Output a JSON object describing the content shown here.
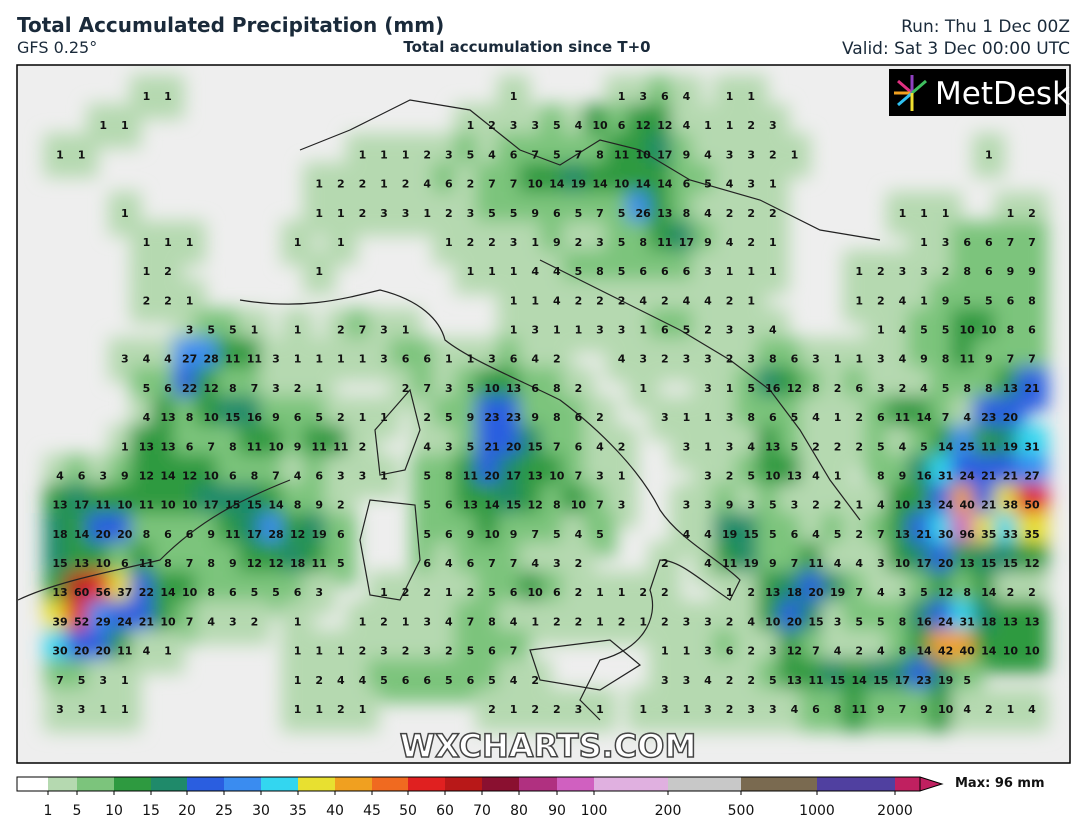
{
  "header": {
    "title": "Total Accumulated Precipitation (mm)",
    "model": "GFS 0.25°",
    "subtitle": "Total accumulation since T+0",
    "run": "Run: Thu 1 Dec 00Z",
    "valid": "Valid: Sat 3 Dec 00:00 UTC"
  },
  "logo": "MetDesk",
  "watermark": "WXCHARTS.COM",
  "map": {
    "grid": [
      [
        null,
        null,
        null,
        null,
        1,
        1,
        null,
        null,
        null,
        null,
        null,
        null,
        null,
        null,
        null,
        null,
        null,
        null,
        null,
        null,
        null,
        1,
        null,
        null,
        null,
        null,
        1,
        3,
        6,
        4,
        null,
        1,
        1,
        null,
        null,
        null,
        null,
        null,
        null,
        null,
        null,
        null,
        null,
        null,
        null,
        null
      ],
      [
        null,
        null,
        1,
        1,
        null,
        null,
        null,
        null,
        null,
        null,
        null,
        null,
        null,
        null,
        null,
        null,
        null,
        null,
        null,
        1,
        2,
        3,
        3,
        5,
        4,
        10,
        6,
        12,
        12,
        4,
        1,
        1,
        2,
        3,
        null,
        null,
        null,
        null,
        null,
        null,
        null,
        null,
        null,
        null,
        null,
        null
      ],
      [
        1,
        1,
        null,
        null,
        null,
        null,
        null,
        null,
        null,
        null,
        null,
        null,
        null,
        null,
        1,
        1,
        1,
        2,
        3,
        5,
        4,
        6,
        7,
        5,
        7,
        8,
        11,
        10,
        17,
        9,
        4,
        3,
        3,
        2,
        1,
        null,
        null,
        null,
        null,
        null,
        null,
        null,
        null,
        1,
        null,
        null
      ],
      [
        null,
        null,
        null,
        null,
        null,
        null,
        null,
        null,
        null,
        null,
        null,
        null,
        1,
        2,
        2,
        1,
        2,
        4,
        6,
        2,
        7,
        7,
        10,
        14,
        19,
        14,
        10,
        14,
        14,
        6,
        5,
        4,
        3,
        1,
        null,
        null,
        null,
        null,
        null,
        null,
        null,
        null,
        null,
        null,
        null,
        null
      ],
      [
        null,
        null,
        null,
        1,
        null,
        null,
        null,
        null,
        null,
        null,
        null,
        null,
        1,
        1,
        2,
        3,
        3,
        1,
        2,
        3,
        5,
        5,
        9,
        6,
        5,
        7,
        5,
        26,
        13,
        8,
        4,
        2,
        2,
        2,
        null,
        null,
        null,
        null,
        null,
        1,
        1,
        1,
        null,
        null,
        1,
        2
      ],
      [
        null,
        null,
        null,
        null,
        1,
        1,
        1,
        null,
        null,
        null,
        null,
        1,
        null,
        1,
        null,
        null,
        null,
        null,
        1,
        2,
        2,
        3,
        1,
        9,
        2,
        3,
        5,
        8,
        11,
        17,
        9,
        4,
        2,
        1,
        null,
        null,
        null,
        null,
        null,
        null,
        1,
        3,
        6,
        6,
        7,
        7
      ],
      [
        null,
        null,
        null,
        null,
        1,
        2,
        null,
        null,
        null,
        null,
        null,
        null,
        1,
        null,
        null,
        null,
        null,
        null,
        null,
        1,
        1,
        1,
        4,
        4,
        5,
        8,
        5,
        6,
        6,
        6,
        3,
        1,
        1,
        1,
        null,
        null,
        null,
        1,
        2,
        3,
        3,
        2,
        8,
        6,
        9,
        9
      ],
      [
        null,
        null,
        null,
        null,
        2,
        2,
        1,
        null,
        null,
        null,
        null,
        null,
        null,
        null,
        null,
        null,
        null,
        null,
        null,
        null,
        null,
        1,
        1,
        4,
        2,
        2,
        2,
        4,
        2,
        4,
        4,
        2,
        1,
        null,
        null,
        null,
        null,
        1,
        2,
        4,
        1,
        9,
        5,
        5,
        6,
        8
      ],
      [
        null,
        null,
        null,
        null,
        null,
        null,
        3,
        5,
        5,
        1,
        null,
        1,
        null,
        2,
        7,
        3,
        1,
        null,
        null,
        null,
        null,
        1,
        3,
        1,
        1,
        3,
        3,
        1,
        6,
        5,
        2,
        3,
        3,
        4,
        null,
        null,
        null,
        null,
        1,
        4,
        5,
        5,
        10,
        10,
        8,
        6
      ],
      [
        null,
        null,
        null,
        3,
        4,
        4,
        27,
        28,
        11,
        11,
        3,
        1,
        1,
        1,
        1,
        3,
        6,
        6,
        1,
        1,
        3,
        6,
        4,
        2,
        null,
        null,
        4,
        3,
        2,
        3,
        3,
        2,
        3,
        8,
        6,
        3,
        1,
        1,
        3,
        4,
        9,
        8,
        11,
        9,
        7,
        7
      ],
      [
        null,
        null,
        null,
        null,
        5,
        6,
        22,
        12,
        8,
        7,
        3,
        2,
        1,
        null,
        null,
        null,
        2,
        7,
        3,
        5,
        10,
        13,
        6,
        8,
        2,
        null,
        null,
        1,
        null,
        null,
        3,
        1,
        5,
        16,
        12,
        8,
        2,
        6,
        3,
        2,
        4,
        5,
        8,
        8,
        13,
        21
      ],
      [
        null,
        null,
        null,
        null,
        4,
        13,
        8,
        10,
        15,
        16,
        9,
        6,
        5,
        2,
        1,
        1,
        null,
        2,
        5,
        9,
        23,
        23,
        9,
        8,
        6,
        2,
        null,
        null,
        3,
        1,
        1,
        3,
        8,
        6,
        5,
        4,
        1,
        2,
        6,
        11,
        14,
        7,
        4,
        23,
        20,
        null
      ],
      [
        null,
        null,
        null,
        1,
        13,
        13,
        6,
        7,
        8,
        11,
        10,
        9,
        11,
        11,
        2,
        null,
        null,
        4,
        3,
        5,
        21,
        20,
        15,
        7,
        6,
        4,
        2,
        null,
        null,
        3,
        1,
        3,
        4,
        13,
        5,
        2,
        2,
        2,
        5,
        4,
        5,
        14,
        25,
        11,
        19,
        31
      ],
      [
        4,
        6,
        3,
        9,
        12,
        14,
        12,
        10,
        6,
        8,
        7,
        4,
        6,
        3,
        3,
        1,
        null,
        5,
        8,
        11,
        20,
        17,
        13,
        10,
        7,
        3,
        1,
        null,
        null,
        null,
        3,
        2,
        5,
        10,
        13,
        4,
        1,
        null,
        8,
        9,
        16,
        31,
        24,
        21,
        21,
        27
      ],
      [
        13,
        17,
        11,
        10,
        11,
        10,
        10,
        17,
        15,
        15,
        14,
        8,
        9,
        2,
        null,
        null,
        null,
        5,
        6,
        13,
        14,
        15,
        12,
        8,
        10,
        7,
        3,
        null,
        null,
        3,
        3,
        9,
        3,
        5,
        3,
        2,
        2,
        1,
        4,
        10,
        13,
        24,
        40,
        21,
        38,
        50
      ],
      [
        18,
        14,
        20,
        20,
        8,
        6,
        6,
        9,
        11,
        17,
        28,
        12,
        19,
        6,
        null,
        null,
        null,
        5,
        6,
        9,
        10,
        9,
        7,
        5,
        4,
        5,
        null,
        null,
        null,
        4,
        4,
        19,
        15,
        5,
        6,
        4,
        5,
        2,
        7,
        13,
        21,
        30,
        96,
        35,
        33,
        35
      ],
      [
        15,
        13,
        10,
        6,
        11,
        8,
        7,
        8,
        9,
        12,
        12,
        18,
        11,
        5,
        null,
        null,
        null,
        6,
        4,
        6,
        7,
        7,
        4,
        3,
        2,
        null,
        null,
        null,
        2,
        null,
        4,
        11,
        19,
        9,
        7,
        11,
        4,
        4,
        3,
        10,
        17,
        20,
        13,
        15,
        15,
        12
      ],
      [
        13,
        60,
        56,
        37,
        22,
        14,
        10,
        8,
        6,
        5,
        5,
        6,
        3,
        null,
        null,
        1,
        2,
        2,
        1,
        2,
        5,
        6,
        10,
        6,
        2,
        1,
        1,
        2,
        2,
        null,
        null,
        1,
        2,
        13,
        18,
        20,
        19,
        7,
        4,
        3,
        5,
        12,
        8,
        14,
        2,
        2
      ],
      [
        39,
        52,
        29,
        24,
        21,
        10,
        7,
        4,
        3,
        2,
        null,
        1,
        null,
        null,
        1,
        2,
        1,
        3,
        4,
        7,
        8,
        4,
        1,
        2,
        2,
        1,
        2,
        1,
        2,
        3,
        3,
        2,
        4,
        10,
        20,
        15,
        3,
        5,
        5,
        8,
        16,
        24,
        31,
        18,
        13,
        13
      ],
      [
        30,
        20,
        20,
        11,
        4,
        1,
        null,
        null,
        null,
        null,
        null,
        1,
        1,
        1,
        2,
        3,
        2,
        3,
        2,
        5,
        6,
        7,
        null,
        null,
        null,
        null,
        null,
        null,
        1,
        1,
        3,
        6,
        2,
        3,
        12,
        7,
        4,
        2,
        4,
        8,
        14,
        42,
        40,
        14,
        10,
        10
      ],
      [
        7,
        5,
        3,
        1,
        null,
        null,
        null,
        null,
        null,
        null,
        null,
        1,
        2,
        4,
        4,
        5,
        6,
        6,
        5,
        6,
        5,
        4,
        2,
        null,
        null,
        null,
        null,
        null,
        3,
        3,
        4,
        2,
        2,
        5,
        13,
        11,
        15,
        14,
        15,
        17,
        23,
        19,
        5,
        null,
        null,
        null
      ],
      [
        3,
        3,
        1,
        1,
        null,
        null,
        null,
        null,
        null,
        null,
        null,
        1,
        1,
        2,
        1,
        null,
        null,
        null,
        null,
        null,
        2,
        1,
        2,
        2,
        3,
        1,
        null,
        1,
        3,
        1,
        3,
        2,
        3,
        3,
        4,
        6,
        8,
        11,
        9,
        7,
        9,
        10,
        4,
        2,
        1,
        4
      ]
    ]
  },
  "colorbar": {
    "labels": [
      1,
      5,
      10,
      15,
      20,
      25,
      30,
      35,
      40,
      45,
      50,
      60,
      70,
      80,
      90,
      100,
      200,
      500,
      1000,
      2000
    ],
    "colors": [
      "#b5d9b0",
      "#7cc47c",
      "#2e9a40",
      "#1f8a6a",
      "#2a5ee0",
      "#3a8cf0",
      "#33d6f0",
      "#e8e030",
      "#f0a020",
      "#f06a20",
      "#e02020",
      "#b81818",
      "#8a1030",
      "#b03080",
      "#d060c0",
      "#e0b0e0",
      "#c8c8c8",
      "#7a6a50",
      "#5040a0",
      "#c02060"
    ],
    "max_label": "Max: 96 mm"
  }
}
